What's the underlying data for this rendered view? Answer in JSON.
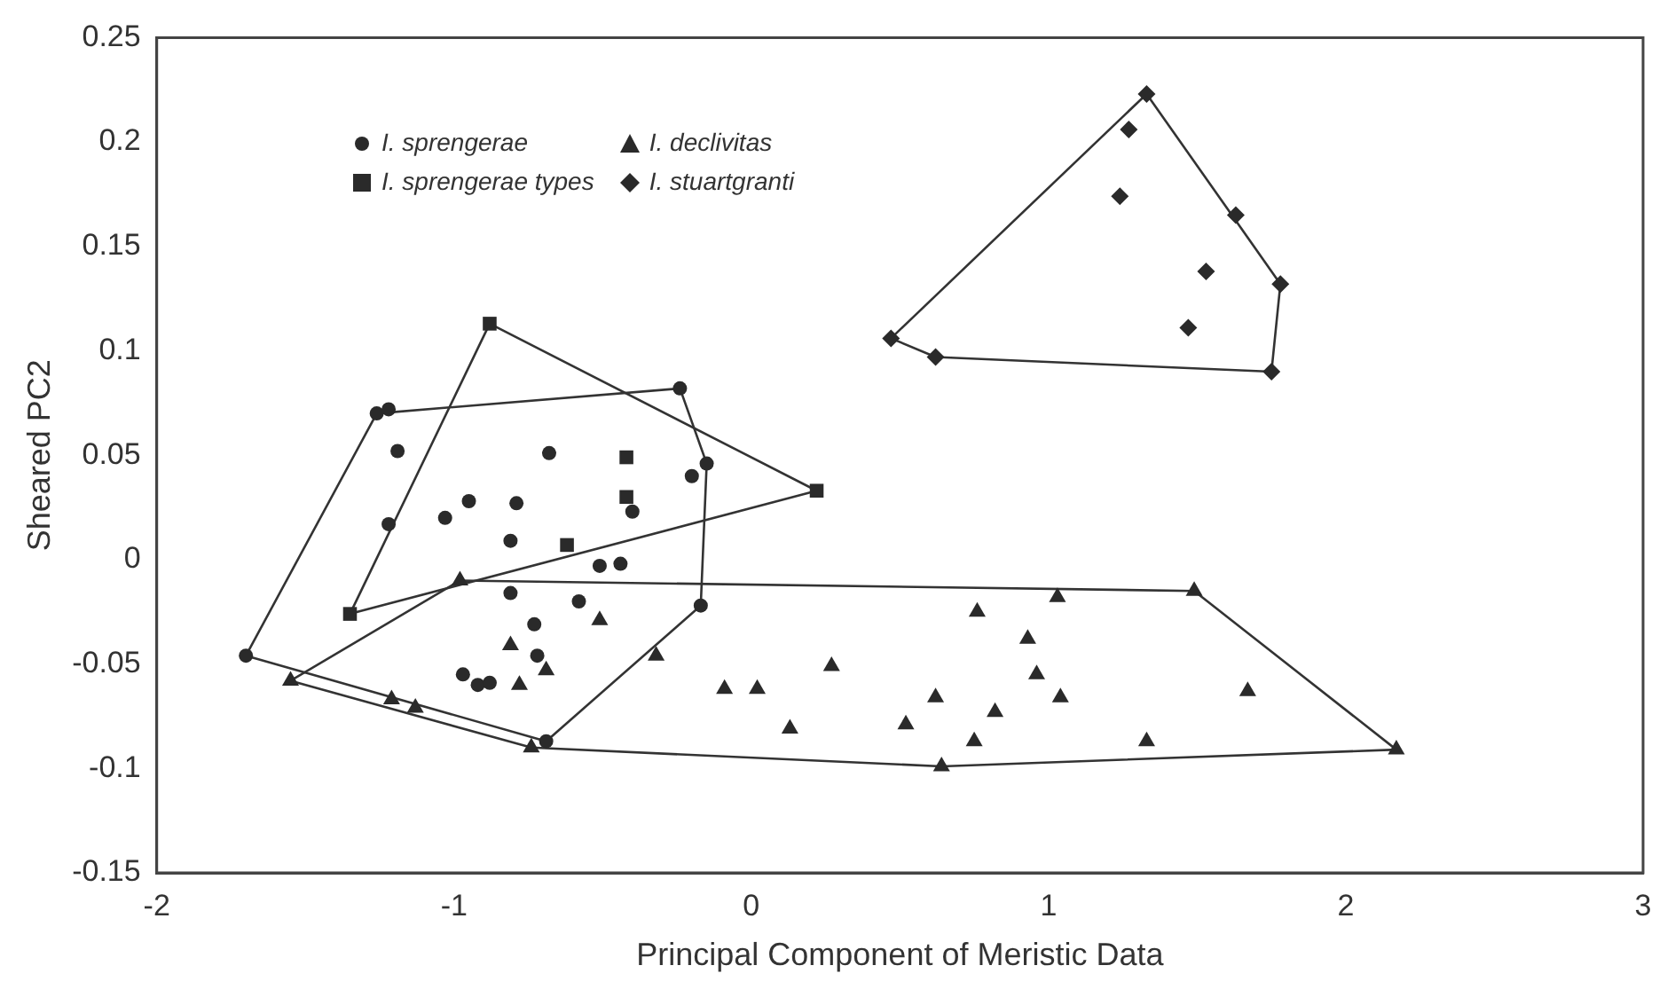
{
  "chart_data": {
    "type": "scatter",
    "xlabel": "Principal Component of Meristic Data",
    "ylabel": "Sheared PC2",
    "xlim": [
      -2,
      3
    ],
    "xticks": [
      -2,
      -1,
      0,
      1,
      2,
      3
    ],
    "ylim": [
      -0.15,
      0.25
    ],
    "yticks": [
      -0.15,
      -0.1,
      -0.05,
      0,
      0.05,
      0.1,
      0.15,
      0.2,
      0.25
    ],
    "grid": false,
    "legend": "top left",
    "series": [
      {
        "name": "I. sprengerae",
        "color": "#2a2a2a",
        "marker": "circle",
        "x": [
          -1.7,
          -1.26,
          -1.22,
          -1.19,
          -1.22,
          -1.03,
          -0.95,
          -0.79,
          -0.68,
          -0.81,
          -0.81,
          -0.58,
          -0.51,
          -0.44,
          -0.4,
          -0.2,
          -0.15,
          -0.24,
          -0.17,
          -0.69,
          -0.97,
          -0.92,
          -0.88,
          -0.73,
          -0.72
        ],
        "values": [
          -0.046,
          0.07,
          0.072,
          0.052,
          0.017,
          0.02,
          0.028,
          0.027,
          0.051,
          0.009,
          -0.016,
          -0.02,
          -0.003,
          -0.002,
          0.023,
          0.04,
          0.046,
          0.082,
          -0.022,
          -0.087,
          -0.055,
          -0.06,
          -0.059,
          -0.031,
          -0.046
        ]
      },
      {
        "name": "I. declivitas",
        "color": "#2a2a2a",
        "marker": "triangle",
        "x": [
          -0.98,
          -0.51,
          -0.81,
          -0.69,
          -0.78,
          -1.55,
          -1.21,
          -1.13,
          -0.74,
          -0.32,
          -0.09,
          0.02,
          0.27,
          0.13,
          1.03,
          1.49,
          0.76,
          0.93,
          0.96,
          1.67,
          1.04,
          0.82,
          0.62,
          0.52,
          0.75,
          0.64,
          1.33,
          2.17
        ],
        "values": [
          -0.01,
          -0.029,
          -0.041,
          -0.053,
          -0.06,
          -0.058,
          -0.067,
          -0.071,
          -0.09,
          -0.046,
          -0.062,
          -0.062,
          -0.051,
          -0.081,
          -0.018,
          -0.015,
          -0.025,
          -0.038,
          -0.055,
          -0.063,
          -0.066,
          -0.073,
          -0.066,
          -0.079,
          -0.087,
          -0.099,
          -0.087,
          -0.091
        ]
      },
      {
        "name": "I. sprengerae types",
        "color": "#2a2a2a",
        "marker": "square",
        "x": [
          -0.88,
          -0.42,
          -0.42,
          -0.62,
          -1.35,
          0.22
        ],
        "values": [
          0.113,
          0.049,
          0.03,
          0.007,
          -0.026,
          0.033
        ]
      },
      {
        "name": "I. stuartgranti",
        "color": "#2a2a2a",
        "marker": "diamond",
        "x": [
          1.33,
          1.27,
          1.24,
          1.63,
          1.53,
          1.78,
          1.47,
          0.47,
          0.62,
          1.75
        ],
        "values": [
          0.223,
          0.206,
          0.174,
          0.165,
          0.138,
          0.132,
          0.111,
          0.106,
          0.097,
          0.09
        ]
      },
      {
        "type": "line",
        "color": "#333333",
        "marker": "none",
        "x": [
          -1.7,
          -1.26,
          -0.24,
          -0.15
        ],
        "values": [
          -0.046,
          0.07,
          0.082,
          0.046
        ]
      },
      {
        "type": "line",
        "color": "#333333",
        "marker": "none",
        "x": [
          -1.7,
          -0.69,
          -0.17,
          -0.15
        ],
        "values": [
          -0.046,
          -0.087,
          -0.022,
          0.046
        ]
      },
      {
        "type": "line",
        "color": "#333333",
        "marker": "none",
        "x": [
          -1.35,
          -0.88,
          0.22
        ],
        "values": [
          -0.026,
          0.113,
          0.033
        ]
      },
      {
        "type": "line",
        "color": "#333333",
        "marker": "none",
        "x": [
          -1.35,
          0.22
        ],
        "values": [
          -0.026,
          0.033
        ]
      },
      {
        "type": "line",
        "color": "#333333",
        "marker": "none",
        "x": [
          -1.55,
          -0.98,
          1.49,
          2.17
        ],
        "values": [
          -0.058,
          -0.01,
          -0.015,
          -0.091
        ]
      },
      {
        "type": "line",
        "color": "#333333",
        "marker": "none",
        "x": [
          -1.55,
          -0.74,
          0.64,
          2.17
        ],
        "values": [
          -0.058,
          -0.09,
          -0.099,
          -0.091
        ]
      },
      {
        "type": "line",
        "color": "#333333",
        "marker": "none",
        "x": [
          0.47,
          1.33,
          1.78
        ],
        "values": [
          0.106,
          0.223,
          0.132
        ]
      },
      {
        "type": "line",
        "color": "#333333",
        "marker": "none",
        "x": [
          0.47,
          0.62,
          1.75,
          1.78
        ],
        "values": [
          0.106,
          0.097,
          0.09,
          0.132
        ]
      }
    ]
  }
}
